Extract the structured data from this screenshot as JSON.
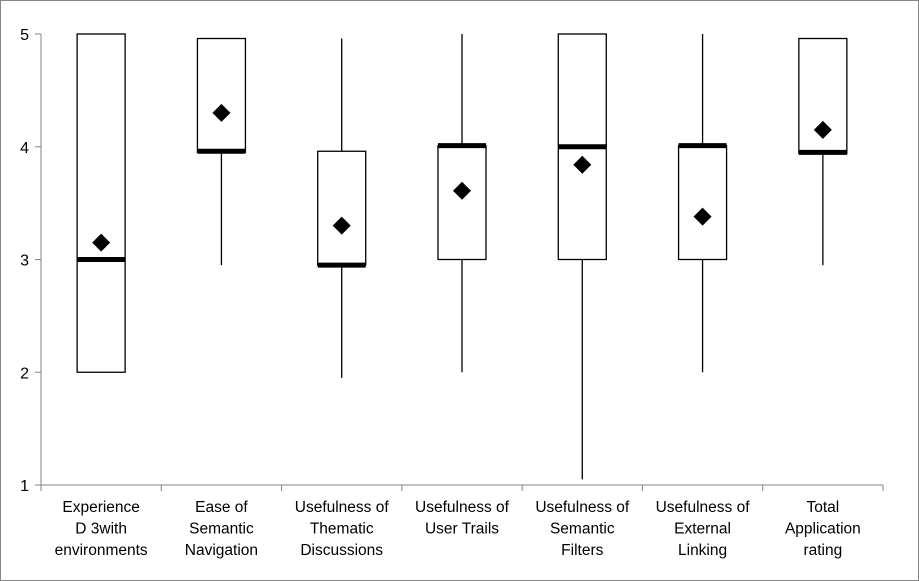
{
  "chart_data": {
    "type": "boxplot",
    "title": "",
    "xlabel": "",
    "ylabel": "",
    "ylim": [
      1,
      5
    ],
    "yticks": [
      "1",
      "2",
      "3",
      "4",
      "5"
    ],
    "grid": false,
    "legend": "none",
    "categories": [
      [
        "Experience",
        "D 3with",
        "environments"
      ],
      [
        "Ease of",
        "Semantic",
        "Navigation"
      ],
      [
        "Usefulness of",
        "Thematic",
        "Discussions"
      ],
      [
        "Usefulness of",
        "User Trails"
      ],
      [
        "Usefulness of",
        "Semantic",
        "Filters"
      ],
      [
        "Usefulness of",
        "External",
        "Linking"
      ],
      [
        "Total",
        "Application",
        "rating"
      ]
    ],
    "boxes": [
      {
        "min": 2.0,
        "q1": 2.0,
        "median": 3.0,
        "q3": 5.0,
        "max": 5.0,
        "mean": 3.15
      },
      {
        "min": 2.95,
        "q1": 3.95,
        "median": 3.96,
        "q3": 4.96,
        "max": 4.96,
        "mean": 4.3
      },
      {
        "min": 1.95,
        "q1": 2.95,
        "median": 2.95,
        "q3": 3.96,
        "max": 4.96,
        "mean": 3.3
      },
      {
        "min": 2.0,
        "q1": 3.0,
        "median": 4.01,
        "q3": 4.01,
        "max": 5.0,
        "mean": 3.61
      },
      {
        "min": 1.05,
        "q1": 3.0,
        "median": 4.0,
        "q3": 5.0,
        "max": 5.0,
        "mean": 3.84
      },
      {
        "min": 2.0,
        "q1": 3.0,
        "median": 4.01,
        "q3": 4.01,
        "max": 5.0,
        "mean": 3.38
      },
      {
        "min": 2.95,
        "q1": 3.94,
        "median": 3.95,
        "q3": 4.96,
        "max": 4.96,
        "mean": 4.15
      }
    ],
    "colors": {
      "box_fill": "#ffffff",
      "stroke": "#000000",
      "frame": "#868686",
      "mean_marker": "#000000"
    }
  }
}
